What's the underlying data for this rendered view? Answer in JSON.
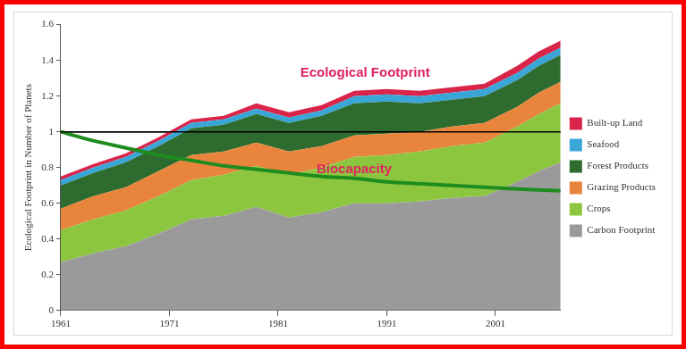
{
  "chart_data": {
    "type": "area",
    "stacked": true,
    "y_label": "Ecological Footprint in Number of Planets",
    "x": [
      1961,
      1964,
      1967,
      1970,
      1973,
      1976,
      1979,
      1982,
      1985,
      1988,
      1991,
      1994,
      1997,
      2000,
      2003,
      2005,
      2007
    ],
    "xlim": [
      1961,
      2007
    ],
    "xticks": [
      1961,
      1971,
      1981,
      1991,
      2001
    ],
    "ylim": [
      0,
      1.6
    ],
    "yticks": [
      0,
      0.2,
      0.4,
      0.6,
      0.8,
      1,
      1.2,
      1.4,
      1.6
    ],
    "grid": false,
    "legend": "right",
    "reference_lines": [
      1
    ],
    "series": [
      {
        "name": "Carbon Footprint",
        "color": "#9a9a9a",
        "values": [
          0.27,
          0.32,
          0.36,
          0.43,
          0.51,
          0.53,
          0.58,
          0.52,
          0.55,
          0.6,
          0.6,
          0.61,
          0.63,
          0.64,
          0.72,
          0.78,
          0.83
        ]
      },
      {
        "name": "Crops",
        "color": "#8cc63f",
        "values": [
          0.18,
          0.19,
          0.2,
          0.21,
          0.22,
          0.23,
          0.23,
          0.24,
          0.25,
          0.26,
          0.27,
          0.28,
          0.29,
          0.3,
          0.31,
          0.32,
          0.33
        ]
      },
      {
        "name": "Grazing Products",
        "color": "#e8843c",
        "values": [
          0.12,
          0.13,
          0.13,
          0.14,
          0.14,
          0.13,
          0.13,
          0.13,
          0.12,
          0.12,
          0.12,
          0.11,
          0.11,
          0.11,
          0.11,
          0.12,
          0.12
        ]
      },
      {
        "name": "Forest Products",
        "color": "#2e6b2e",
        "values": [
          0.13,
          0.13,
          0.14,
          0.14,
          0.15,
          0.15,
          0.16,
          0.16,
          0.17,
          0.18,
          0.18,
          0.16,
          0.15,
          0.15,
          0.15,
          0.15,
          0.15
        ]
      },
      {
        "name": "Seafood",
        "color": "#3aa6d8",
        "values": [
          0.03,
          0.03,
          0.03,
          0.03,
          0.03,
          0.03,
          0.03,
          0.03,
          0.03,
          0.04,
          0.04,
          0.04,
          0.04,
          0.04,
          0.04,
          0.04,
          0.04
        ]
      },
      {
        "name": "Built-up Land",
        "color": "#d9254a",
        "values": [
          0.02,
          0.02,
          0.02,
          0.02,
          0.02,
          0.02,
          0.03,
          0.03,
          0.03,
          0.03,
          0.03,
          0.03,
          0.03,
          0.03,
          0.04,
          0.04,
          0.04
        ]
      },
      {
        "name": "Biocapacity",
        "type": "line",
        "color": "#1e8c1e",
        "values": [
          1.0,
          0.95,
          0.91,
          0.87,
          0.84,
          0.81,
          0.79,
          0.77,
          0.75,
          0.74,
          0.72,
          0.71,
          0.7,
          0.69,
          0.68,
          0.675,
          0.67
        ]
      }
    ],
    "annotations": [
      {
        "text": "Ecological Footprint",
        "color": "#e0245e",
        "x": 1989,
        "y": 1.33
      },
      {
        "text": "Biocapacity",
        "color": "#e0245e",
        "x": 1988,
        "y": 0.79
      }
    ]
  }
}
